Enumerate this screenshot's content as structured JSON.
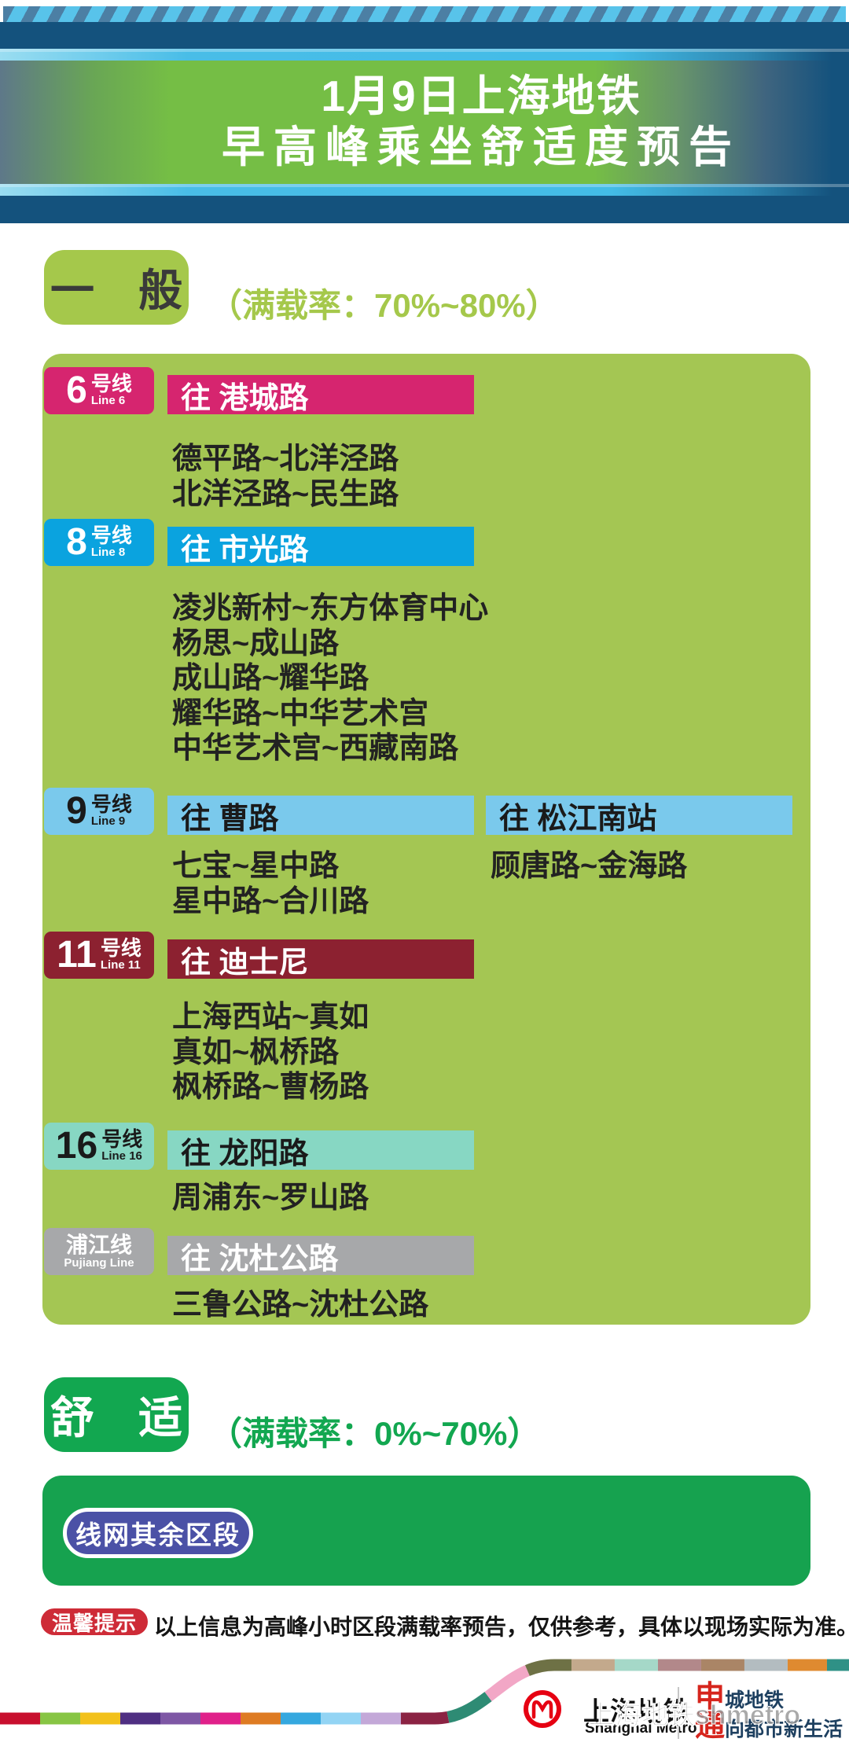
{
  "header": {
    "title_line1": "1月9日上海地铁",
    "title_line2": "早高峰乘坐舒适度预告"
  },
  "sections": {
    "general": {
      "badge": "一　般",
      "note": "（满载率：70%~80%）",
      "lines": [
        {
          "id": "line6",
          "num": "6",
          "suffix": "号线",
          "sub": "Line 6",
          "color": "#D6256F",
          "text_color": "#FFFFFF",
          "directions": [
            {
              "label": "往 港城路",
              "segments": [
                "德平路~北洋泾路",
                "北洋泾路~民生路"
              ]
            }
          ]
        },
        {
          "id": "line8",
          "num": "8",
          "suffix": "号线",
          "sub": "Line 8",
          "color": "#0AA3DF",
          "text_color": "#FFFFFF",
          "directions": [
            {
              "label": "往 市光路",
              "segments": [
                "凌兆新村~东方体育中心",
                "杨思~成山路",
                "成山路~耀华路",
                "耀华路~中华艺术宫",
                "中华艺术宫~西藏南路"
              ]
            }
          ]
        },
        {
          "id": "line9",
          "num": "9",
          "suffix": "号线",
          "sub": "Line 9",
          "color": "#7AC9EC",
          "text_color": "#1A1A1A",
          "directions": [
            {
              "label": "往 曹路",
              "segments": [
                "七宝~星中路",
                "星中路~合川路"
              ]
            },
            {
              "label": "往 松江南站",
              "segments": [
                "顾唐路~金海路"
              ]
            }
          ]
        },
        {
          "id": "line11",
          "num": "11",
          "suffix": "号线",
          "sub": "Line 11",
          "color": "#8C2130",
          "text_color": "#FFFFFF",
          "directions": [
            {
              "label": "往 迪士尼",
              "segments": [
                "上海西站~真如",
                "真如~枫桥路",
                "枫桥路~曹杨路"
              ]
            }
          ]
        },
        {
          "id": "line16",
          "num": "16",
          "suffix": "号线",
          "sub": "Line 16",
          "color": "#87D7C3",
          "text_color": "#1A1A1A",
          "directions": [
            {
              "label": "往 龙阳路",
              "segments": [
                "周浦东~罗山路"
              ]
            }
          ]
        },
        {
          "id": "pujiang",
          "name": "浦江线",
          "sub": "Pujiang Line",
          "color": "#A7A8AA",
          "text_color": "#FFFFFF",
          "directions": [
            {
              "label": "往 沈杜公路",
              "segments": [
                "三鲁公路~沈杜公路"
              ]
            }
          ]
        }
      ]
    },
    "comfortable": {
      "badge": "舒　适",
      "note": "（满载率：0%~70%）",
      "chip": "线网其余区段"
    }
  },
  "notice": {
    "badge": "温馨提示",
    "text": "以上信息为高峰小时区段满载率预告，仅供参考，具体以现场实际为准。"
  },
  "footer": {
    "logo_icon": "shanghai-metro-roundel",
    "logo_cn": "上海地铁",
    "logo_en": "Shanghai Metro",
    "slogan1_accent": "申",
    "slogan1_rest": "城地铁",
    "slogan2_accent": "通",
    "slogan2_rest": "向都市新生活",
    "watermark": "上海地铁shmetro",
    "ribbon_segments": [
      {
        "color": "#C8102E",
        "len": 51
      },
      {
        "color": "#87C544",
        "len": 51
      },
      {
        "color": "#F2C11B",
        "len": 51
      },
      {
        "color": "#4F2F82",
        "len": 51
      },
      {
        "color": "#7E57A5",
        "len": 51
      },
      {
        "color": "#E0218A",
        "len": 51
      },
      {
        "color": "#DE7B23",
        "len": 51
      },
      {
        "color": "#35A8DF",
        "len": 51
      },
      {
        "color": "#93D4F4",
        "len": 51
      },
      {
        "color": "#C3A8D8",
        "len": 51
      },
      {
        "color": "#8B2343",
        "len": 60
      },
      {
        "color": "#2E8B74",
        "len": 58
      },
      {
        "color": "#F2A7C6",
        "len": 60
      },
      {
        "color": "#6E7145",
        "len": 57
      },
      {
        "color": "#C3A98C",
        "len": 55
      },
      {
        "color": "#A5D8C8",
        "len": 55
      },
      {
        "color": "#B2888A",
        "len": 55
      },
      {
        "color": "#AA8566",
        "len": 55
      },
      {
        "color": "#B3BCC0",
        "len": 55
      },
      {
        "color": "#DF8A30",
        "len": 50
      },
      {
        "color": "#2F9186",
        "len": 130
      }
    ]
  },
  "colors": {
    "navy": "#14527D",
    "cyan_band": "#45BCE7",
    "title_green": "#75BE45",
    "general_green": "#A5C84B",
    "general_box": "#A4C653",
    "comfy_green": "#12A750",
    "comfy_box": "#16A24F",
    "chip_indigo": "#4B51A6",
    "notice_red": "#CE2B37",
    "logo_red": "#E60012",
    "slogan_red": "#D6251D",
    "slogan_navy": "#1E4060"
  }
}
